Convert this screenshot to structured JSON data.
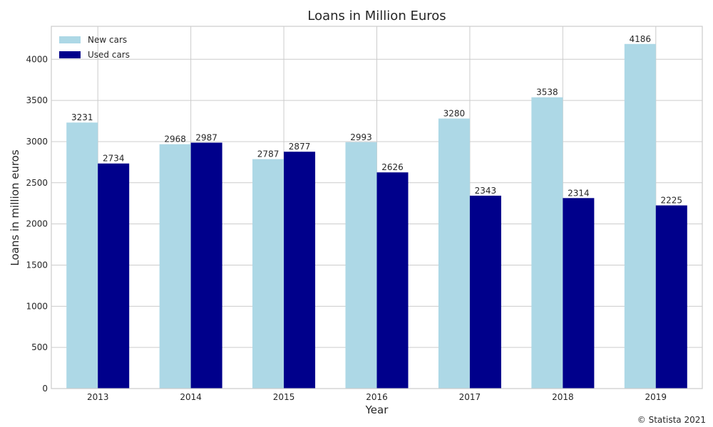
{
  "chart_data": {
    "type": "bar",
    "title": "Loans in Million Euros",
    "xlabel": "Year",
    "ylabel": "Loans in million euros",
    "categories": [
      "2013",
      "2014",
      "2015",
      "2016",
      "2017",
      "2018",
      "2019"
    ],
    "series": [
      {
        "name": "New cars",
        "values": [
          3231,
          2968,
          2787,
          2993,
          3280,
          3538,
          4186
        ],
        "color": "#add8e6"
      },
      {
        "name": "Used cars",
        "values": [
          2734,
          2987,
          2877,
          2626,
          2343,
          2314,
          2225
        ],
        "color": "#00008b"
      }
    ],
    "ylim": [
      0,
      4400
    ],
    "yticks": [
      0,
      500,
      1000,
      1500,
      2000,
      2500,
      3000,
      3500,
      4000
    ],
    "grid": true,
    "legend_position": "top-left",
    "data_labels": true
  },
  "credit": "© Statista 2021"
}
